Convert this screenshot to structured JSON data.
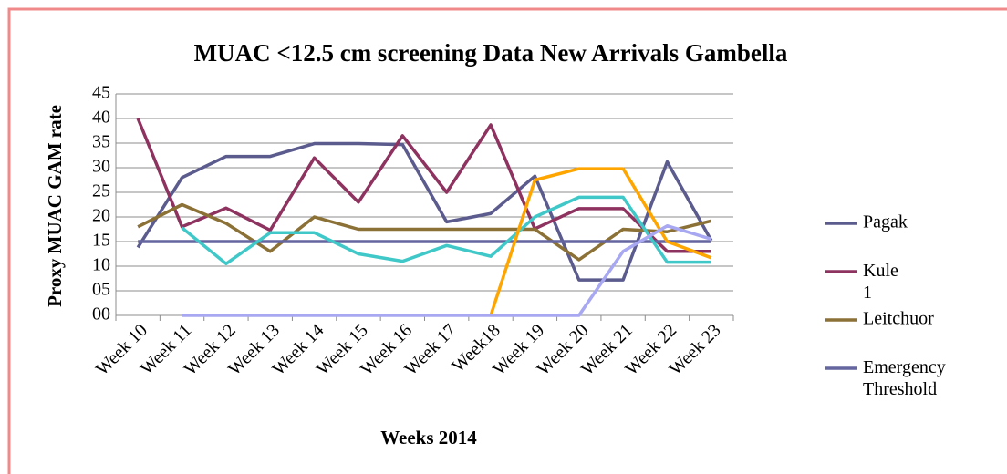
{
  "chart_data": {
    "type": "line",
    "title": "MUAC <12.5 cm screening Data New Arrivals Gambella",
    "x_label": "Weeks 2014",
    "y_label": "Proxy MUAC GAM rate",
    "categories": [
      "Week 10",
      "Week 11",
      "Week 12",
      "Week 13",
      "Week 14",
      "Week 15",
      "Week 16",
      "Week 17",
      "Week18",
      "Week 19",
      "Week 20",
      "Week 21",
      "Week 22",
      "Week 23"
    ],
    "ylim": [
      0,
      45
    ],
    "yticks": [
      {
        "value": 0,
        "label": "00"
      },
      {
        "value": 5,
        "label": "05"
      },
      10,
      15,
      20,
      25,
      30,
      35,
      40,
      45
    ],
    "grid": true,
    "legend": "right",
    "series": [
      {
        "name": "Pagak",
        "color": "#5b5b8e",
        "values": [
          13.8,
          28,
          32.3,
          32.3,
          34.9,
          34.9,
          34.7,
          19,
          20.7,
          28.3,
          7.2,
          7.2,
          31.2,
          15.2
        ]
      },
      {
        "name": "Kule 1",
        "color": "#8e3360",
        "values": [
          40,
          18,
          21.8,
          17.3,
          32,
          23,
          36.5,
          25,
          38.7,
          17.6,
          21.7,
          21.7,
          13,
          13
        ]
      },
      {
        "name": "Leitchuor",
        "color": "#8b7136",
        "values": [
          18,
          22.5,
          18.7,
          13,
          20,
          17.5,
          17.5,
          17.5,
          17.5,
          17.5,
          11.3,
          17.5,
          17,
          19.2
        ]
      },
      {
        "name": "Emergency Threshold",
        "color": "#6565a0",
        "values": [
          15,
          15,
          15,
          15,
          15,
          15,
          15,
          15,
          15,
          15,
          15,
          15,
          15,
          15
        ]
      },
      {
        "color": "#40c8c8",
        "values": [
          null,
          17.8,
          10.5,
          16.8,
          16.8,
          12.5,
          11,
          14.2,
          12,
          20,
          24,
          24,
          10.8,
          10.8
        ]
      },
      {
        "color": "#ffa500",
        "values": [
          null,
          null,
          null,
          null,
          null,
          null,
          null,
          null,
          0,
          27.5,
          29.8,
          29.8,
          15,
          11.7
        ]
      },
      {
        "color": "#a8a8f2",
        "values": [
          null,
          0,
          0,
          0,
          0,
          0,
          0,
          0,
          0,
          0,
          0,
          13,
          18.2,
          15.5
        ]
      }
    ]
  }
}
